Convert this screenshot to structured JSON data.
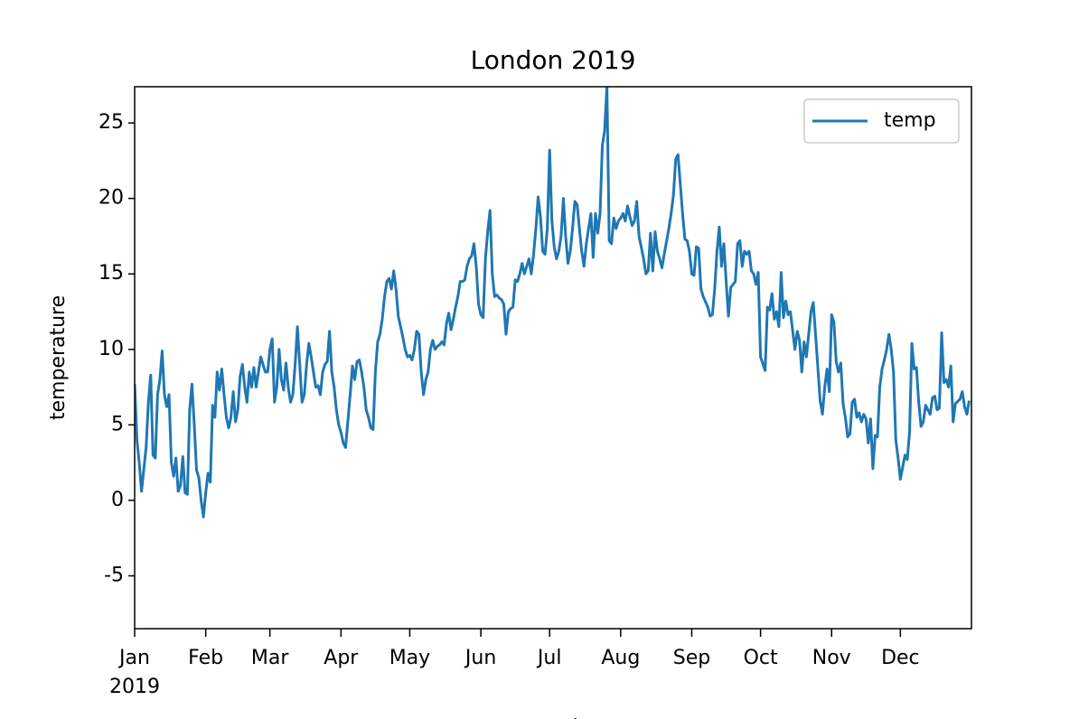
{
  "chart_data": {
    "type": "line",
    "title": "London 2019",
    "x_label": "month",
    "y_label": "temperature",
    "year_label": "2019",
    "xlim": [
      0,
      365
    ],
    "ylim": [
      -8.5,
      27.4
    ],
    "legend": "upper right",
    "grid": false,
    "xticks": [
      {
        "value": 0,
        "label": "Jan"
      },
      {
        "value": 31,
        "label": "Feb"
      },
      {
        "value": 59,
        "label": "Mar"
      },
      {
        "value": 90,
        "label": "Apr"
      },
      {
        "value": 120,
        "label": "May"
      },
      {
        "value": 151,
        "label": "Jun"
      },
      {
        "value": 181,
        "label": "Jul"
      },
      {
        "value": 212,
        "label": "Aug"
      },
      {
        "value": 243,
        "label": "Sep"
      },
      {
        "value": 273,
        "label": "Oct"
      },
      {
        "value": 304,
        "label": "Nov"
      },
      {
        "value": 334,
        "label": "Dec"
      }
    ],
    "yticks": [
      -5,
      0,
      5,
      10,
      15,
      20,
      25
    ],
    "x": [
      0,
      1,
      2,
      3,
      5,
      6,
      7,
      8,
      9,
      10,
      11,
      12,
      13,
      14,
      15,
      16,
      17,
      18,
      19,
      20,
      21,
      22,
      23,
      24,
      25,
      26,
      27,
      28,
      29,
      30,
      31,
      32,
      33,
      34,
      35,
      36,
      37,
      38,
      39,
      40,
      41,
      42,
      43,
      44,
      45,
      46,
      47,
      48,
      49,
      50,
      51,
      52,
      53,
      54,
      55,
      56,
      57,
      58,
      59,
      60,
      61,
      62,
      63,
      64,
      65,
      66,
      67,
      68,
      69,
      70,
      71,
      72,
      73,
      74,
      75,
      76,
      77,
      78,
      79,
      80,
      81,
      82,
      83,
      84,
      85,
      86,
      87,
      88,
      89,
      90,
      91,
      92,
      94,
      95,
      96,
      97,
      98,
      99,
      100,
      101,
      102,
      103,
      104,
      105,
      106,
      107,
      108,
      109,
      110,
      111,
      112,
      113,
      114,
      115,
      116,
      117,
      118,
      119,
      120,
      121,
      122,
      123,
      124,
      125,
      126,
      127,
      128,
      129,
      130,
      131,
      132,
      133,
      134,
      135,
      136,
      137,
      138,
      139,
      140,
      141,
      142,
      143,
      144,
      145,
      146,
      147,
      148,
      149,
      150,
      151,
      152,
      153,
      154,
      155,
      156,
      157,
      158,
      159,
      160,
      161,
      162,
      163,
      164,
      165,
      166,
      167,
      168,
      169,
      170,
      171,
      172,
      173,
      174,
      175,
      176,
      177,
      178,
      179,
      180,
      181,
      182,
      183,
      184,
      185,
      186,
      187,
      188,
      189,
      190,
      191,
      192,
      193,
      194,
      195,
      196,
      197,
      198,
      199,
      200,
      201,
      202,
      203,
      204,
      205,
      206,
      207,
      208,
      209,
      210,
      211,
      212,
      213,
      214,
      215,
      216,
      217,
      218,
      219,
      220,
      222,
      223,
      224,
      225,
      226,
      227,
      228,
      229,
      230,
      231,
      233,
      234,
      235,
      236,
      237,
      239,
      240,
      241,
      242,
      243,
      244,
      245,
      246,
      247,
      248,
      250,
      251,
      252,
      253,
      254,
      255,
      256,
      257,
      258,
      259,
      260,
      262,
      263,
      264,
      265,
      266,
      267,
      268,
      269,
      270,
      271,
      272,
      273,
      275,
      276,
      277,
      278,
      279,
      280,
      281,
      282,
      283,
      284,
      285,
      286,
      288,
      289,
      290,
      291,
      292,
      293,
      294,
      295,
      296,
      297,
      299,
      300,
      301,
      302,
      303,
      304,
      305,
      306,
      307,
      308,
      309,
      310,
      311,
      312,
      313,
      314,
      315,
      316,
      317,
      318,
      319,
      320,
      321,
      322,
      323,
      324,
      325,
      326,
      327,
      328,
      329,
      330,
      331,
      332,
      333,
      334,
      336,
      337,
      338,
      339,
      340,
      341,
      342,
      343,
      344,
      345,
      347,
      348,
      349,
      350,
      351,
      352,
      353,
      354,
      355,
      356,
      357,
      358,
      360,
      361,
      362,
      363,
      364
    ],
    "series": [
      {
        "name": "temp",
        "color": "#1f77b4",
        "values": [
          7.7,
          4,
          2.5,
          0.6,
          3.5,
          6.5,
          8.3,
          3,
          2.8,
          7,
          8,
          9.9,
          7,
          6.2,
          7,
          2.5,
          1.6,
          2.8,
          0.6,
          1,
          2.9,
          0.5,
          0.4,
          6,
          7.7,
          5,
          2,
          1.5,
          0,
          -1.1,
          0.5,
          1.8,
          1.2,
          6.3,
          5.5,
          8.5,
          7.3,
          8.7,
          7,
          5.5,
          4.8,
          5.5,
          7.2,
          5.2,
          6,
          8.2,
          9,
          7.5,
          6.5,
          8.5,
          7.5,
          8.8,
          7.5,
          8.5,
          9.5,
          9,
          8.5,
          8.5,
          10,
          10.7,
          6.5,
          7.5,
          10,
          8,
          7.3,
          9.1,
          7.5,
          6.5,
          7,
          9,
          11.5,
          9,
          6.5,
          7,
          9,
          10.4,
          9.5,
          8.5,
          7.5,
          7.6,
          7,
          8.5,
          9,
          9.2,
          11.2,
          8.5,
          7.5,
          6,
          5,
          4.5,
          3.8,
          3.5,
          7,
          8.9,
          8,
          9.2,
          9.3,
          8.5,
          7.5,
          6,
          5.5,
          4.8,
          4.7,
          8.5,
          10.5,
          11,
          12,
          13.5,
          14.5,
          14.7,
          14,
          15.2,
          14,
          12.2,
          11.5,
          10.8,
          10,
          9.5,
          9.6,
          9.3,
          10,
          11.2,
          11,
          8.5,
          7,
          8,
          8.5,
          10,
          10.6,
          10,
          10.2,
          10.3,
          10.5,
          10.3,
          11.7,
          12.4,
          11.3,
          12,
          12.8,
          13.5,
          14.5,
          14.5,
          14.6,
          15.5,
          16,
          16.2,
          17,
          15.5,
          13,
          12.3,
          12.1,
          16,
          17.8,
          19.2,
          15,
          13.5,
          13.6,
          13.4,
          13.3,
          13,
          11,
          12.5,
          12.7,
          12.8,
          14.6,
          14.5,
          15,
          15.7,
          15,
          15.5,
          16,
          15,
          16.3,
          18,
          20.1,
          18.8,
          16.5,
          16.3,
          18,
          23.2,
          18.5,
          16.8,
          16,
          16.5,
          17.5,
          20,
          17.5,
          15.7,
          16.5,
          18,
          19.8,
          19.6,
          18,
          16.5,
          15.5,
          17,
          18,
          19,
          16.1,
          19,
          17.7,
          19,
          23.5,
          24.5,
          27.4,
          17.2,
          17,
          18.7,
          18,
          18.5,
          18.7,
          19,
          18.5,
          19.5,
          18.8,
          18.2,
          18.5,
          19.8,
          17.5,
          16,
          15,
          15.2,
          17.7,
          15.2,
          17.8,
          16.5,
          16,
          15.4,
          16.3,
          18,
          19,
          20.2,
          22.6,
          22.9,
          19,
          17.3,
          17.2,
          16.5,
          15,
          14.9,
          16.8,
          16.7,
          14,
          13.5,
          12.8,
          12.2,
          12.3,
          14,
          16.5,
          18.1,
          15.5,
          17,
          14.5,
          12.2,
          14.1,
          14.5,
          17,
          17.2,
          15.5,
          16.5,
          16.3,
          16.5,
          15.2,
          15,
          14.3,
          15.1,
          9.5,
          8.6,
          12.8,
          12.6,
          13.7,
          12,
          12.5,
          11.5,
          15.1,
          12.1,
          13.2,
          12.3,
          12.5,
          10,
          11.2,
          10.6,
          8.5,
          10.5,
          9.5,
          11,
          12.5,
          13.1,
          11,
          6.6,
          5.7,
          7.5,
          8.7,
          7.2,
          12.3,
          11.8,
          9.2,
          8.5,
          9.1,
          6.4,
          5.5,
          4.2,
          4.4,
          6.5,
          6.7,
          5.5,
          5.8,
          5.2,
          5.7,
          5.4,
          3.8,
          5.4,
          2.1,
          4.3,
          4.2,
          7.5,
          8.7,
          9.3,
          10,
          11,
          10,
          8.5,
          4,
          2.8,
          1.4,
          3,
          2.7,
          4.5,
          10.4,
          8.7,
          8.8,
          6.5,
          4.9,
          5.2,
          6.3,
          5.7,
          6.8,
          6.9,
          6,
          6.1,
          11.1,
          7.8,
          8,
          7.5,
          8.9,
          5.2,
          6.4,
          6.7,
          7.2,
          6.2,
          5.7,
          6.6
        ]
      }
    ]
  }
}
